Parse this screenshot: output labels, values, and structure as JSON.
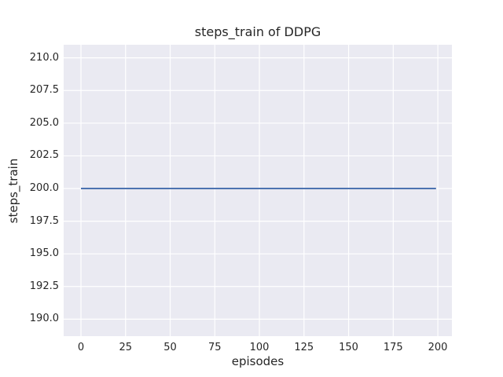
{
  "chart_data": {
    "type": "line",
    "title": "steps_train of DDPG",
    "xlabel": "episodes",
    "ylabel": "steps_train",
    "x_ticks": [
      0,
      25,
      50,
      75,
      100,
      125,
      150,
      175,
      200
    ],
    "x_tick_labels": [
      "0",
      "25",
      "50",
      "75",
      "100",
      "125",
      "150",
      "175",
      "200"
    ],
    "y_ticks": [
      190.0,
      192.5,
      195.0,
      197.5,
      200.0,
      202.5,
      205.0,
      207.5,
      210.0
    ],
    "y_tick_labels": [
      "190.0",
      "192.5",
      "195.0",
      "197.5",
      "200.0",
      "202.5",
      "205.0",
      "207.5",
      "210.0"
    ],
    "xlim": [
      -9.7,
      207.9
    ],
    "ylim": [
      188.7,
      211.0
    ],
    "grid": true,
    "legend": false,
    "series": [
      {
        "name": "steps_train",
        "color": "#4c72b0",
        "x": [
          0,
          199
        ],
        "y": [
          200,
          200
        ]
      }
    ],
    "colors": {
      "figure_background": "#ffffff",
      "plot_background": "#eaeaf2",
      "grid": "#ffffff",
      "text": "#262626"
    }
  }
}
